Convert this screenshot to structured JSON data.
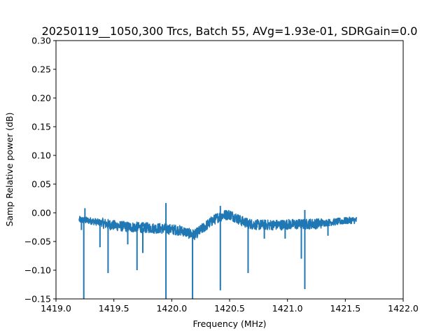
{
  "chart_data": {
    "type": "line",
    "title": "20250119__1050,300 Trcs, Batch 55, AVg=1.93e-01, SDRGain=0.0",
    "xlabel": "Frequency (MHz)",
    "ylabel": "Samp Relative power (dB)",
    "xlim": [
      1419.0,
      1422.0
    ],
    "ylim": [
      -0.15,
      0.3
    ],
    "xticks": [
      1419.0,
      1419.5,
      1420.0,
      1420.5,
      1421.0,
      1421.5,
      1422.0
    ],
    "xtick_labels": [
      "1419.0",
      "1419.5",
      "1420.0",
      "1420.5",
      "1421.0",
      "1421.5",
      "1422.0"
    ],
    "yticks": [
      -0.15,
      -0.1,
      -0.05,
      0.0,
      0.05,
      0.1,
      0.15,
      0.2,
      0.25,
      0.3
    ],
    "ytick_labels": [
      "−0.15",
      "−0.10",
      "−0.05",
      "0.00",
      "0.05",
      "0.10",
      "0.15",
      "0.20",
      "0.25",
      "0.30"
    ],
    "grid": false,
    "line_color": "#1f77b4",
    "series": [
      {
        "x": [
          1419.2,
          1419.25,
          1419.3,
          1419.35,
          1419.4,
          1419.45,
          1419.5,
          1419.55,
          1419.6,
          1419.65,
          1419.7,
          1419.75,
          1419.8,
          1419.85,
          1419.9,
          1419.95,
          1420.0,
          1420.05,
          1420.1,
          1420.15,
          1420.2,
          1420.25,
          1420.3,
          1420.35,
          1420.4,
          1420.45,
          1420.5,
          1420.55,
          1420.6,
          1420.65,
          1420.7,
          1420.75,
          1420.8,
          1420.85,
          1420.9,
          1420.95,
          1421.0,
          1421.05,
          1421.1,
          1421.15,
          1421.2,
          1421.25,
          1421.3,
          1421.35,
          1421.4,
          1421.45,
          1421.5,
          1421.55,
          1421.6
        ],
        "values": [
          -0.012,
          -0.013,
          -0.014,
          -0.016,
          -0.018,
          -0.02,
          -0.022,
          -0.023,
          -0.024,
          -0.025,
          -0.025,
          -0.026,
          -0.026,
          -0.027,
          -0.027,
          -0.028,
          -0.029,
          -0.03,
          -0.032,
          -0.036,
          -0.038,
          -0.03,
          -0.022,
          -0.014,
          -0.008,
          -0.004,
          -0.003,
          -0.008,
          -0.014,
          -0.018,
          -0.02,
          -0.021,
          -0.021,
          -0.021,
          -0.021,
          -0.021,
          -0.02,
          -0.02,
          -0.02,
          -0.02,
          -0.019,
          -0.019,
          -0.018,
          -0.017,
          -0.016,
          -0.015,
          -0.014,
          -0.013,
          -0.013
        ]
      }
    ],
    "spikes": [
      {
        "x": 1419.22,
        "y": -0.03
      },
      {
        "x": 1419.24,
        "y": -0.15
      },
      {
        "x": 1419.25,
        "y": 0.008
      },
      {
        "x": 1419.38,
        "y": -0.06
      },
      {
        "x": 1419.45,
        "y": -0.105
      },
      {
        "x": 1419.62,
        "y": -0.055
      },
      {
        "x": 1419.7,
        "y": -0.1
      },
      {
        "x": 1419.75,
        "y": -0.07
      },
      {
        "x": 1419.95,
        "y": 0.017
      },
      {
        "x": 1419.95,
        "y": -0.15
      },
      {
        "x": 1420.18,
        "y": -0.15
      },
      {
        "x": 1420.42,
        "y": -0.135
      },
      {
        "x": 1420.42,
        "y": 0.012
      },
      {
        "x": 1420.66,
        "y": -0.105
      },
      {
        "x": 1420.8,
        "y": -0.045
      },
      {
        "x": 1420.98,
        "y": -0.045
      },
      {
        "x": 1421.12,
        "y": -0.08
      },
      {
        "x": 1421.15,
        "y": -0.133
      },
      {
        "x": 1421.15,
        "y": 0.005
      },
      {
        "x": 1421.35,
        "y": -0.04
      }
    ]
  }
}
